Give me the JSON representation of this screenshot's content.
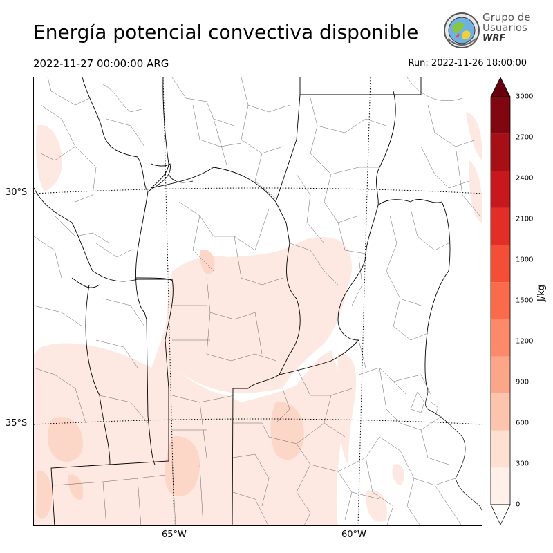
{
  "map": {
    "title": "Energía potencial convectiva disponible",
    "valid_time": "2022-11-27 00:00:00 ARG",
    "run_time": "Run: 2022-11-26 18:00:00",
    "logo": {
      "line1": "Grupo de",
      "line2": "Usuarios",
      "line3": "WRF"
    },
    "lat_labels": [
      "30°S",
      "35°S"
    ],
    "lon_labels": [
      "65°W",
      "60°W"
    ],
    "region": "Central Argentina",
    "field": "CAPE",
    "shading_colors": [
      "#fde9e2",
      "#fcd6c7"
    ]
  },
  "colorbar": {
    "unit": "J/kg",
    "ticks": [
      "0",
      "300",
      "600",
      "900",
      "1200",
      "1500",
      "1800",
      "2100",
      "2400",
      "2700",
      "3000"
    ],
    "colors": [
      "#fff0ea",
      "#fee0d2",
      "#fcc4ad",
      "#fca689",
      "#fc8a6a",
      "#fb6b4b",
      "#f44e37",
      "#e22e27",
      "#c9181d",
      "#a50f15",
      "#800710"
    ],
    "extend_max_color": "#67000d"
  }
}
